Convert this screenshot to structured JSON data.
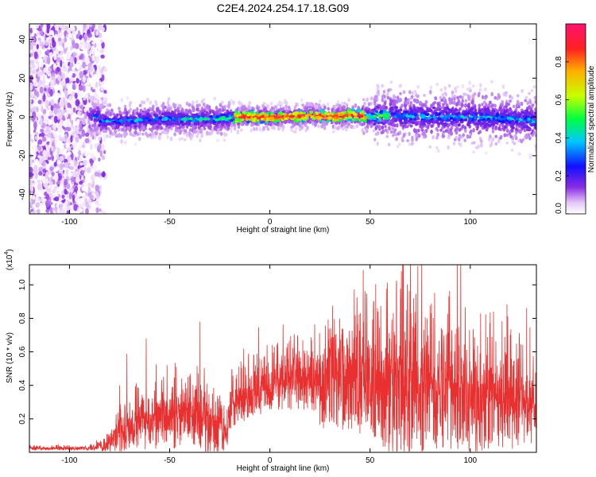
{
  "title": "C2E4.2024.254.17.18.G09",
  "chart_data": [
    {
      "type": "heatmap",
      "xlabel": "Height of straight line (km)",
      "ylabel": "Frequency (Hz)",
      "xlim": [
        -120,
        133
      ],
      "ylim": [
        -50,
        48
      ],
      "xticks": [
        -100,
        -50,
        0,
        50,
        100
      ],
      "yticks": [
        -40,
        -20,
        0,
        20,
        40
      ],
      "colorbar": {
        "label": "Normalized spectral amplitude",
        "range": [
          0,
          1
        ],
        "ticks": [
          0.0,
          0.2,
          0.4,
          0.6,
          0.8
        ],
        "tick_labels": [
          "0.0",
          "0.2",
          "0.4",
          "0.6",
          "0.8"
        ],
        "colormap": [
          "#ffffff",
          "#e3c6f8",
          "#8a2be2",
          "#1010ff",
          "#00c8ff",
          "#00ff40",
          "#c8ff00",
          "#ffb000",
          "#ff2020",
          "#ff1070"
        ]
      },
      "ridge_center_hz": [
        [
          -85,
          -2
        ],
        [
          -70,
          -2
        ],
        [
          -55,
          -1
        ],
        [
          -40,
          -1
        ],
        [
          -25,
          -1
        ],
        [
          -15,
          0
        ],
        [
          -5,
          0
        ],
        [
          10,
          0
        ],
        [
          20,
          1
        ],
        [
          30,
          0
        ],
        [
          40,
          1
        ],
        [
          50,
          0
        ],
        [
          60,
          1
        ],
        [
          75,
          0
        ],
        [
          90,
          0
        ],
        [
          105,
          0
        ],
        [
          120,
          -1
        ],
        [
          133,
          -2
        ]
      ]
    },
    {
      "type": "line",
      "xlabel": "Height of straight line (km)",
      "ylabel": "SNR (10 * v/v)",
      "y_multiplier": "(x10",
      "y_multiplier_exp": "4",
      "y_multiplier_close": ")",
      "xlim": [
        -120,
        133
      ],
      "ylim": [
        0,
        11200
      ],
      "xticks": [
        -100,
        -50,
        0,
        50,
        100
      ],
      "yticks": [
        2000,
        4000,
        6000,
        8000,
        10000
      ],
      "ytick_labels": [
        "0.2",
        "0.4",
        "0.6",
        "0.8",
        "1.0"
      ],
      "color": "#e83030",
      "envelope": {
        "x": [
          -120,
          -90,
          -82,
          -75,
          -65,
          -55,
          -45,
          -35,
          -28,
          -22,
          -18,
          -10,
          0,
          10,
          20,
          25,
          30,
          40,
          50,
          55,
          60,
          65,
          70,
          80,
          90,
          100,
          110,
          120,
          133
        ],
        "base": [
          200,
          200,
          300,
          700,
          1200,
          1500,
          1500,
          1300,
          1100,
          600,
          2500,
          3000,
          3600,
          3800,
          3800,
          3000,
          3400,
          3300,
          3300,
          3000,
          2800,
          2500,
          2600,
          2600,
          2500,
          2300,
          2200,
          2100,
          2100
        ],
        "amp": [
          150,
          150,
          500,
          1400,
          2200,
          2400,
          2500,
          2400,
          2600,
          1300,
          1800,
          1800,
          2200,
          2300,
          2400,
          3000,
          3800,
          3800,
          4200,
          5000,
          5600,
          5800,
          5400,
          4800,
          4600,
          4300,
          3800,
          3500,
          3500
        ]
      }
    }
  ]
}
